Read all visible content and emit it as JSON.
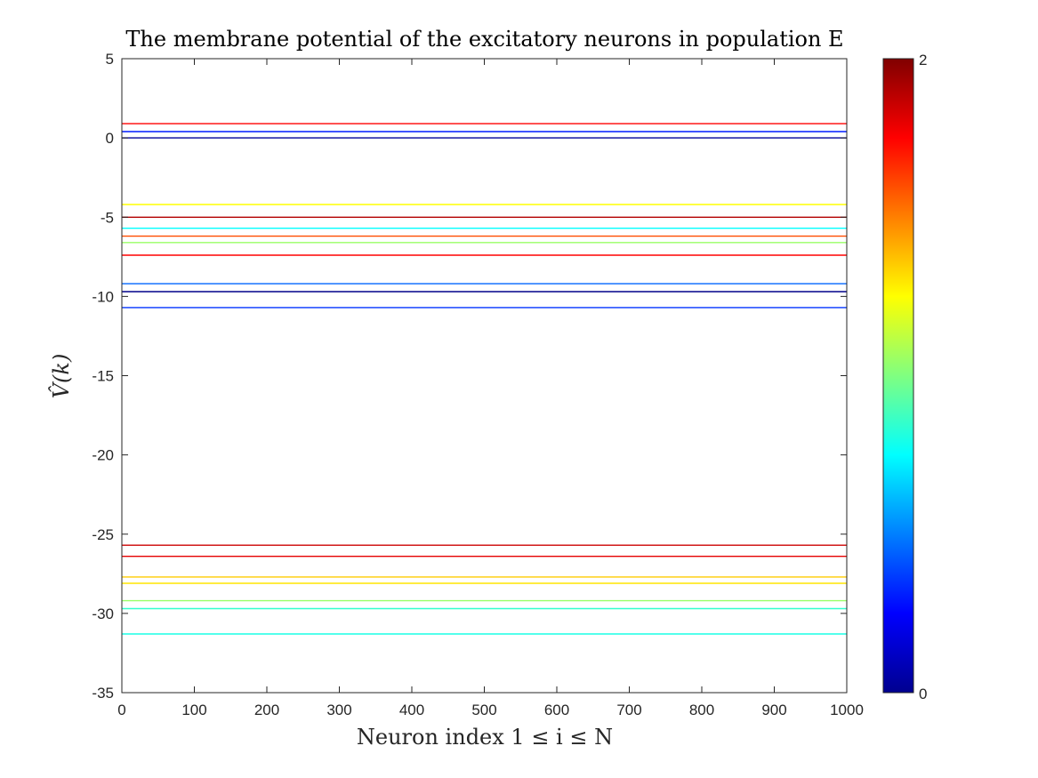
{
  "chart_data": {
    "type": "line",
    "title": "The membrane potential of the excitatory neurons in population E",
    "xlabel": "Neuron index 1 ≤ i ≤ N",
    "ylabel": "V̂(k)",
    "xlim": [
      0,
      1000
    ],
    "ylim": [
      -35,
      5
    ],
    "xticks": [
      0,
      100,
      200,
      300,
      400,
      500,
      600,
      700,
      800,
      900,
      1000
    ],
    "yticks": [
      5,
      0,
      -5,
      -10,
      -15,
      -20,
      -25,
      -30,
      -35
    ],
    "grid": false,
    "colormap": "jet",
    "colorbar": {
      "min": 0,
      "max": 2,
      "tick_labels": [
        "0",
        "2"
      ]
    },
    "series": [
      {
        "values": [
          0.9,
          0.9
        ],
        "color_value": 1.75
      },
      {
        "values": [
          0.4,
          0.4
        ],
        "color_value": 0.3
      },
      {
        "values": [
          0.0,
          0.0
        ],
        "color_value": 0.05
      },
      {
        "values": [
          -4.2,
          -4.2
        ],
        "color_value": 1.25
      },
      {
        "values": [
          -5.0,
          -5.0
        ],
        "color_value": 1.9
      },
      {
        "values": [
          -5.7,
          -5.7
        ],
        "color_value": 0.75
      },
      {
        "values": [
          -6.2,
          -6.2
        ],
        "color_value": 1.6
      },
      {
        "values": [
          -6.6,
          -6.6
        ],
        "color_value": 1.05
      },
      {
        "values": [
          -7.4,
          -7.4
        ],
        "color_value": 1.75
      },
      {
        "values": [
          -9.2,
          -9.2
        ],
        "color_value": 0.45
      },
      {
        "values": [
          -9.7,
          -9.7
        ],
        "color_value": 0.02
      },
      {
        "values": [
          -10.7,
          -10.7
        ],
        "color_value": 0.35
      },
      {
        "values": [
          -25.7,
          -25.7
        ],
        "color_value": 1.85
      },
      {
        "values": [
          -26.4,
          -26.4
        ],
        "color_value": 1.8
      },
      {
        "values": [
          -27.7,
          -27.7
        ],
        "color_value": 1.35
      },
      {
        "values": [
          -28.1,
          -28.1
        ],
        "color_value": 1.3
      },
      {
        "values": [
          -29.2,
          -29.2
        ],
        "color_value": 1.05
      },
      {
        "values": [
          -29.7,
          -29.7
        ],
        "color_value": 0.85
      },
      {
        "values": [
          -31.3,
          -31.3
        ],
        "color_value": 0.8
      }
    ],
    "x": [
      0,
      1000
    ]
  }
}
